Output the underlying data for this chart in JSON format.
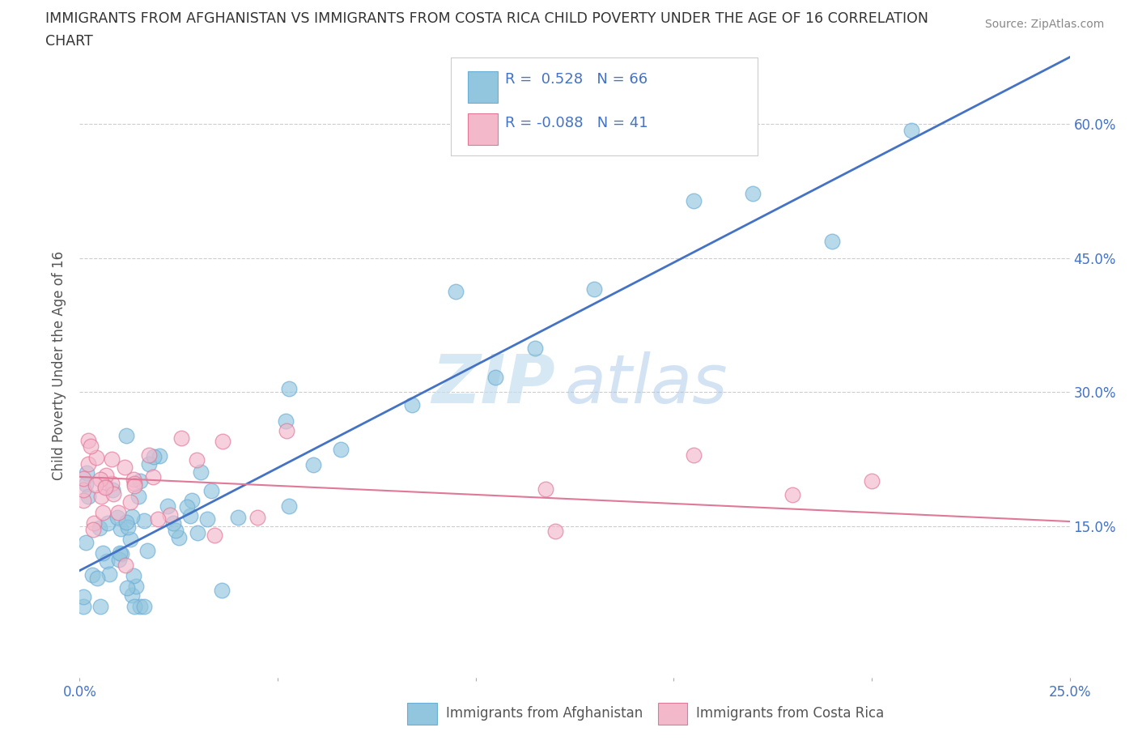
{
  "title_line1": "IMMIGRANTS FROM AFGHANISTAN VS IMMIGRANTS FROM COSTA RICA CHILD POVERTY UNDER THE AGE OF 16 CORRELATION",
  "title_line2": "CHART",
  "source": "Source: ZipAtlas.com",
  "ylabel": "Child Poverty Under the Age of 16",
  "xlim": [
    0.0,
    0.25
  ],
  "ylim": [
    -0.02,
    0.68
  ],
  "ytick_positions": [
    0.15,
    0.3,
    0.45,
    0.6
  ],
  "ytick_labels": [
    "15.0%",
    "30.0%",
    "45.0%",
    "60.0%"
  ],
  "xtick_positions": [
    0.0,
    0.25
  ],
  "xtick_labels": [
    "0.0%",
    "25.0%"
  ],
  "afghanistan_color": "#92c5de",
  "afghanistan_edge": "#6baed6",
  "costarica_color": "#f4b8cb",
  "costarica_edge": "#e07898",
  "reg_afg_color": "#4472c4",
  "reg_cr_color": "#e07898",
  "reg_afg_slope": 2.3,
  "reg_afg_intercept": 0.1,
  "reg_cr_slope": -0.2,
  "reg_cr_intercept": 0.205,
  "R_afghanistan": "0.528",
  "N_afghanistan": "66",
  "R_costarica": "-0.088",
  "N_costarica": "41",
  "watermark_zip": "ZIP",
  "watermark_atlas": "atlas",
  "background_color": "#ffffff",
  "tick_color": "#4472c4",
  "ylabel_color": "#555555",
  "grid_color": "#cccccc",
  "legend_label_afg": "Immigrants from Afghanistan",
  "legend_label_cr": "Immigrants from Costa Rica"
}
